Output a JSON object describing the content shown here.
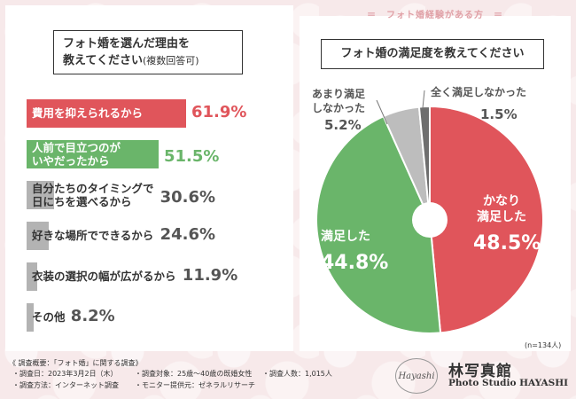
{
  "header": {
    "left_title": "フォト婚を選んだ理由を\n教えてください",
    "left_title_small": "(複数回答可)",
    "right_tag": "＝　フォト婚経験がある方　＝",
    "right_title": "フォト婚の満足度を教えてください"
  },
  "chart_data": [
    {
      "type": "bar",
      "title": "フォト婚を選んだ理由を教えてください（複数回答可）",
      "categories": [
        "費用を抑えられるから",
        "人前で目立つのが\nいやだったから",
        "自分たちのタイミングで\n日にちを選べるから",
        "好きな場所でできるから",
        "衣装の選択の幅が広がるから",
        "その他"
      ],
      "values": [
        61.9,
        51.5,
        30.6,
        24.6,
        11.9,
        8.2
      ],
      "labels": [
        "61.9%",
        "51.5%",
        "30.6%",
        "24.6%",
        "11.9%",
        "8.2%"
      ],
      "colors": [
        "#e0555b",
        "#6ab56a",
        "#b3b3b3",
        "#b3b3b3",
        "#b3b3b3",
        "#b3b3b3"
      ],
      "label_colors": [
        "#e0555b",
        "#6ab56a",
        "#555555",
        "#555555",
        "#555555",
        "#555555"
      ],
      "ylim": [
        0,
        100
      ]
    },
    {
      "type": "pie",
      "title": "フォト婚の満足度を教えてください",
      "categories": [
        "かなり満足した",
        "満足した",
        "あまり満足しなかった",
        "全く満足しなかった"
      ],
      "values": [
        48.5,
        44.8,
        5.2,
        1.5
      ],
      "display_labels": [
        "かなり\n満足した",
        "満足した",
        "あまり満足\nしなかった",
        "全く満足しなかった"
      ],
      "value_labels": [
        "48.5%",
        "44.8%",
        "5.2%",
        "1.5%"
      ],
      "colors": [
        "#e0555b",
        "#6ab56a",
        "#bdbdbd",
        "#6e6e6e"
      ],
      "note": "(n=134人)"
    }
  ],
  "footer": {
    "heading": "《 調査概要：「フォト婚」に関する調査》",
    "date": "・調査日：2023年3月2日（木）",
    "method": "・調査方法：インターネット調査",
    "target": "・調査対象：25歳〜40歳の既婚女性",
    "provider": "・モニター提供元：ゼネラルリサーチ",
    "count": "・調査人数：1,015人"
  },
  "brand": {
    "logo_text": "Hayashi",
    "kanji": "林写真館",
    "english": "Photo Studio HAYASHI"
  }
}
